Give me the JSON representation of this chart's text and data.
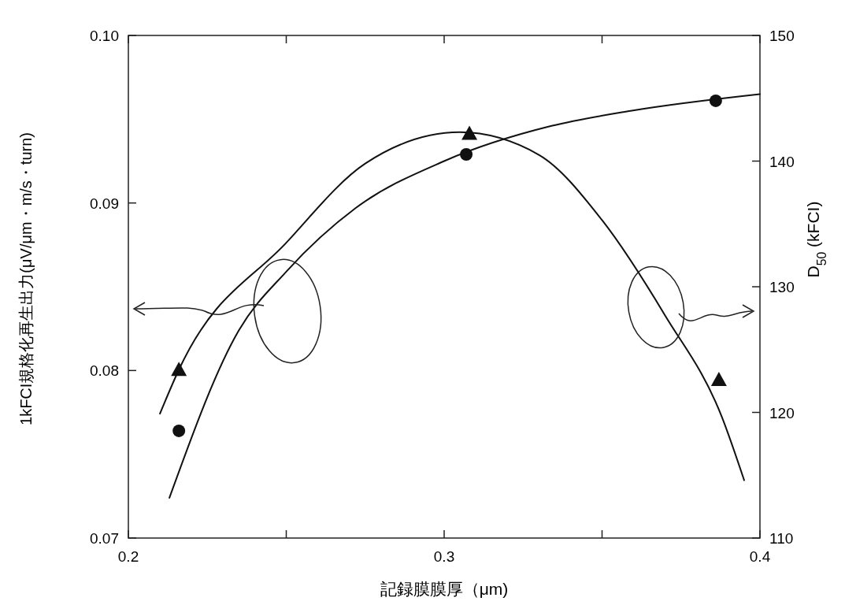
{
  "chart_data": {
    "type": "scatter",
    "xlabel": "記録膜膜厚（μm)",
    "ylabel": "1kFCI規格化再生出力(μV/μm・m/s・turn)",
    "y2label": "D$_{50}$  (kFCI)",
    "xlim": [
      0.2,
      0.4
    ],
    "xticks": [
      0.2,
      {
        "value": 0.25,
        "label": null
      },
      0.3,
      {
        "value": 0.35,
        "label": null
      },
      0.4
    ],
    "ylim": [
      0.07,
      0.1
    ],
    "yticks": [
      0.07,
      0.08,
      0.09,
      {
        "value": 0.1,
        "label": "0.10"
      }
    ],
    "y2lim": [
      110,
      150
    ],
    "y2ticks": [
      110,
      120,
      130,
      140,
      150
    ],
    "grid": false,
    "series": [
      {
        "marker": "circle",
        "color": "#111111",
        "x": [
          0.216,
          0.307,
          0.386
        ],
        "values": [
          0.0764,
          0.0929,
          0.0961
        ]
      },
      {
        "type": "line",
        "marker": "none",
        "color": "#111111",
        "x": [
          0.213,
          0.235,
          0.25,
          0.272,
          0.3,
          0.334,
          0.359,
          0.4
        ],
        "values": [
          0.0724,
          0.0824,
          0.0859,
          0.0897,
          0.0925,
          0.0946,
          0.0955,
          0.0965
        ]
      },
      {
        "axis": "y2",
        "marker": "triangle",
        "color": "#111111",
        "x": [
          0.216,
          0.308,
          0.387
        ],
        "values": [
          123.4,
          142.2,
          122.6
        ]
      },
      {
        "type": "line",
        "axis": "y2",
        "marker": "none",
        "color": "#111111",
        "x": [
          0.21,
          0.216,
          0.25,
          0.275,
          0.305,
          0.33,
          0.35,
          0.37,
          0.388,
          0.395
        ],
        "values": [
          119.9,
          123.4,
          133.5,
          139.8,
          142.3,
          140.5,
          135.3,
          127.7,
          119.6,
          114.6
        ]
      }
    ]
  }
}
